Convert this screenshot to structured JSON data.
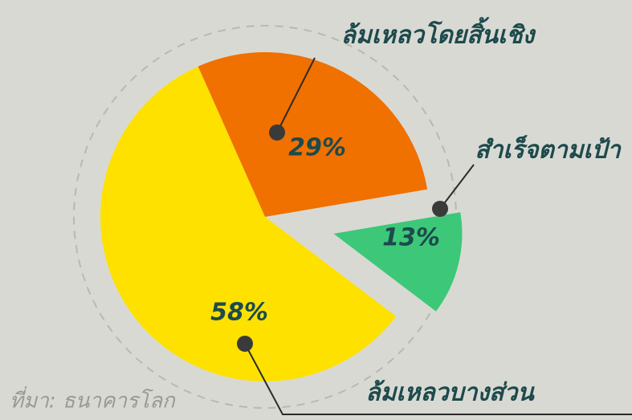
{
  "chart_data": {
    "type": "pie",
    "categories": [
      "ล้มเหลวโดยสิ้นเชิง",
      "สำเร็จตามเป้า",
      "ล้มเหลวบางส่วน"
    ],
    "values": [
      29,
      13,
      58
    ],
    "value_labels": [
      "29%",
      "13%",
      "58%"
    ],
    "colors": [
      "#f07000",
      "#3cc878",
      "#ffe100"
    ],
    "source": "ที่มา: ธนาคารโลก"
  }
}
